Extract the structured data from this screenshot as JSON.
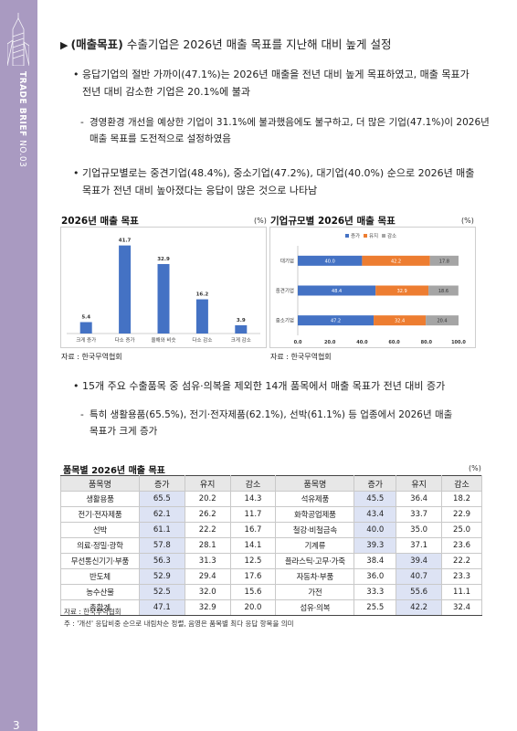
{
  "sidebar": {
    "brand_bold": "TRADE BRIEF",
    "issue": "NO.03",
    "page_number": "3"
  },
  "heading": {
    "marker": "▶",
    "label": "(매출목표)",
    "text": " 수출기업은 2026년 매출 목표를 지난해 대비 높게 설정"
  },
  "bullets": [
    {
      "text": "응답기업의 절반 가까이(47.1%)는 2026년 매출을 전년 대비 높게 목표하였고, 매출 목표가 전년 대비 감소한 기업은 20.1%에 불과",
      "line1": "응답기업의 절반 가까이(47.1%)는 2026년 매출을 전년 대비 높게 목표하였고, 매출 목표가",
      "line2": "전년 대비 감소한 기업은 20.1%에 불과"
    },
    {
      "line1": "경영환경 개선을 예상한 기업이 31.1%에 불과했음에도 불구하고, 더 많은 기업(47.1%)이 2026년",
      "line2": "매출 목표를 도전적으로 설정하였음"
    },
    {
      "line1": "기업규모별로는 중견기업(48.4%), 중소기업(47.2%), 대기업(40.0%) 순으로 2026년 매출",
      "line2": "목표가 전년 대비 높아졌다는 응답이 많은 것으로 나타남"
    },
    {
      "line1": "15개 주요 수출품목 중 섬유·의복을 제외한 14개 품목에서 매출 목표가 전년 대비 증가"
    },
    {
      "line1": "특히 생활용품(65.5%), 전기·전자제품(62.1%), 선박(61.1%) 등 업종에서 2026년 매출",
      "line2": "목표가 크게 증가"
    }
  ],
  "markers": {
    "bullet": "•",
    "dash": "-"
  },
  "chart_data": [
    {
      "type": "bar",
      "title": "2026년 매출 목표",
      "unit": "(%)",
      "categories": [
        "크게 증가",
        "다소 증가",
        "올해와 비슷",
        "다소 감소",
        "크게 감소"
      ],
      "values": [
        5.4,
        41.7,
        32.9,
        16.2,
        3.9
      ],
      "ylim": [
        0,
        45
      ],
      "color": "#4472c4",
      "source": "자료 : 한국무역협회"
    },
    {
      "type": "bar",
      "orientation": "horizontal-stacked",
      "title": "기업규모별 2026년 매출 목표",
      "unit": "(%)",
      "legend": [
        "증가",
        "유지",
        "감소"
      ],
      "legend_position": "top",
      "colors": [
        "#4472c4",
        "#ed7d31",
        "#a5a5a5"
      ],
      "categories": [
        "대기업",
        "중견기업",
        "중소기업"
      ],
      "series": [
        {
          "name": "증가",
          "values": [
            40.0,
            48.4,
            47.2
          ]
        },
        {
          "name": "유지",
          "values": [
            42.2,
            32.9,
            32.4
          ]
        },
        {
          "name": "감소",
          "values": [
            17.8,
            18.6,
            20.4
          ]
        }
      ],
      "xticks": [
        "0.0",
        "20.0",
        "40.0",
        "60.0",
        "80.0",
        "100.0"
      ],
      "xlim": [
        0,
        100
      ],
      "source": "자료 : 한국무역협회"
    }
  ],
  "table": {
    "title": "품목별 2026년 매출 목표",
    "unit": "(%)",
    "headers": [
      "품목명",
      "증가",
      "유지",
      "감소",
      "품목명",
      "증가",
      "유지",
      "감소"
    ],
    "rows": [
      [
        "생활용품",
        "65.5",
        "20.2",
        "14.3",
        "석유제품",
        "45.5",
        "36.4",
        "18.2"
      ],
      [
        "전기·전자제품",
        "62.1",
        "26.2",
        "11.7",
        "화학공업제품",
        "43.4",
        "33.7",
        "22.9"
      ],
      [
        "선박",
        "61.1",
        "22.2",
        "16.7",
        "철강·비철금속",
        "40.0",
        "35.0",
        "25.0"
      ],
      [
        "의료·정밀·광학",
        "57.8",
        "28.1",
        "14.1",
        "기계류",
        "39.3",
        "37.1",
        "23.6"
      ],
      [
        "무선통신기기·부품",
        "56.3",
        "31.3",
        "12.5",
        "플라스틱·고무·가죽",
        "38.4",
        "39.4",
        "22.2"
      ],
      [
        "반도체",
        "52.9",
        "29.4",
        "17.6",
        "자동차·부품",
        "36.0",
        "40.7",
        "23.3"
      ],
      [
        "농수산물",
        "52.5",
        "32.0",
        "15.6",
        "가전",
        "33.3",
        "55.6",
        "11.1"
      ],
      [
        "총합계",
        "47.1",
        "32.9",
        "20.0",
        "섬유·의복",
        "25.5",
        "42.2",
        "32.4"
      ]
    ],
    "highlight": [
      [
        1,
        5
      ],
      [
        1,
        5
      ],
      [
        1,
        5
      ],
      [
        1,
        5
      ],
      [
        1,
        6
      ],
      [
        1,
        6
      ],
      [
        1,
        6
      ],
      [
        1,
        6
      ]
    ],
    "source": "자료 : 한국무역협회",
    "note": "주 : '개선' 응답비중 순으로 내림차순 정렬, 음영은 품목별 최다 응답 항목을 의미"
  }
}
